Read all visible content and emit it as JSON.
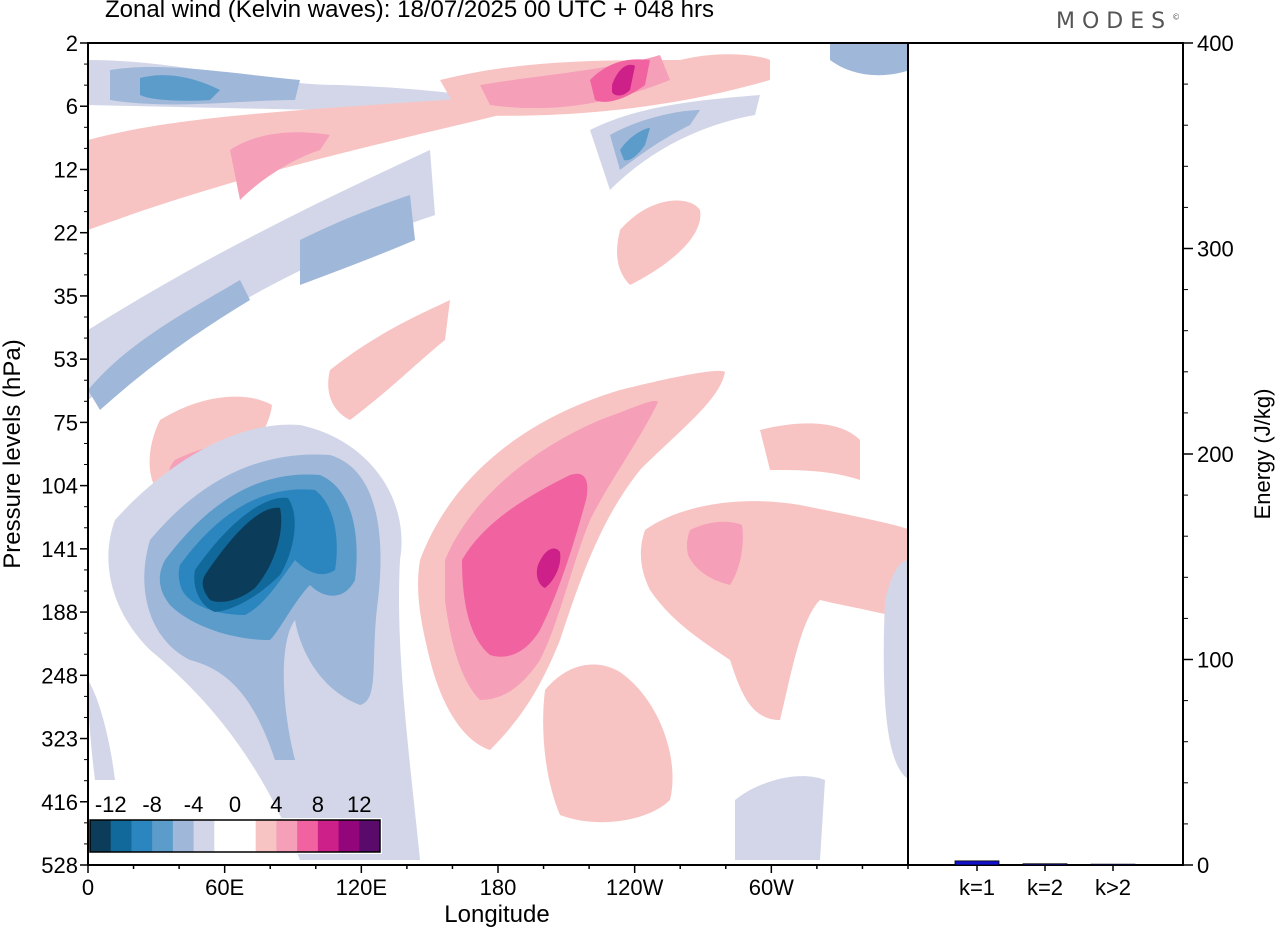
{
  "title": "Zonal wind (Kelvin waves):  18/07/2025  00 UTC  + 048 hrs",
  "logo": "MODES",
  "logo_mark": "©",
  "chart_data": [
    {
      "type": "heatmap",
      "xlabel": "Longitude",
      "ylabel": "Pressure levels (hPa)",
      "x_ticks": [
        "0",
        "60E",
        "120E",
        "180",
        "120W",
        "60W"
      ],
      "y_ticks": [
        "2",
        "6",
        "12",
        "22",
        "35",
        "53",
        "75",
        "104",
        "141",
        "188",
        "248",
        "323",
        "416",
        "528"
      ],
      "colorbar": {
        "labels": [
          "-12",
          "-8",
          "-4",
          "0",
          "4",
          "8",
          "12"
        ],
        "colors": [
          "#0b3d5b",
          "#11689a",
          "#2b86bf",
          "#5b9ccb",
          "#9fb7d8",
          "#d3d6e8",
          "#ffffff",
          "#ffffff",
          "#f8c4c3",
          "#f59fb8",
          "#f063a0",
          "#cd2088",
          "#93057a",
          "#5a0a6b"
        ]
      },
      "features": [
        {
          "name": "strong-negative-upper-trop",
          "lon": 58,
          "level": 141,
          "value": -14
        },
        {
          "name": "negative-lobe",
          "lon": 100,
          "level": 141,
          "value": -10
        },
        {
          "name": "positive-core",
          "lon": 185,
          "level": 160,
          "value": 10
        },
        {
          "name": "positive-diagonal-band",
          "lon": 225,
          "level": 110,
          "value": 4
        },
        {
          "name": "stratosphere-positive",
          "lon": 237,
          "level": 4,
          "value": 12
        },
        {
          "name": "stratosphere-negative",
          "lon": 240,
          "level": 10,
          "value": -8
        }
      ]
    },
    {
      "type": "bar",
      "categories": [
        "k=1",
        "k=2",
        "k>2"
      ],
      "values": [
        2.0,
        0.6,
        0.4
      ],
      "ylabel": "Energy (J/kg)",
      "y_ticks": [
        "0",
        "100",
        "200",
        "300",
        "400"
      ],
      "ylim": [
        0,
        400
      ],
      "bar_color": "#1111cc"
    }
  ]
}
